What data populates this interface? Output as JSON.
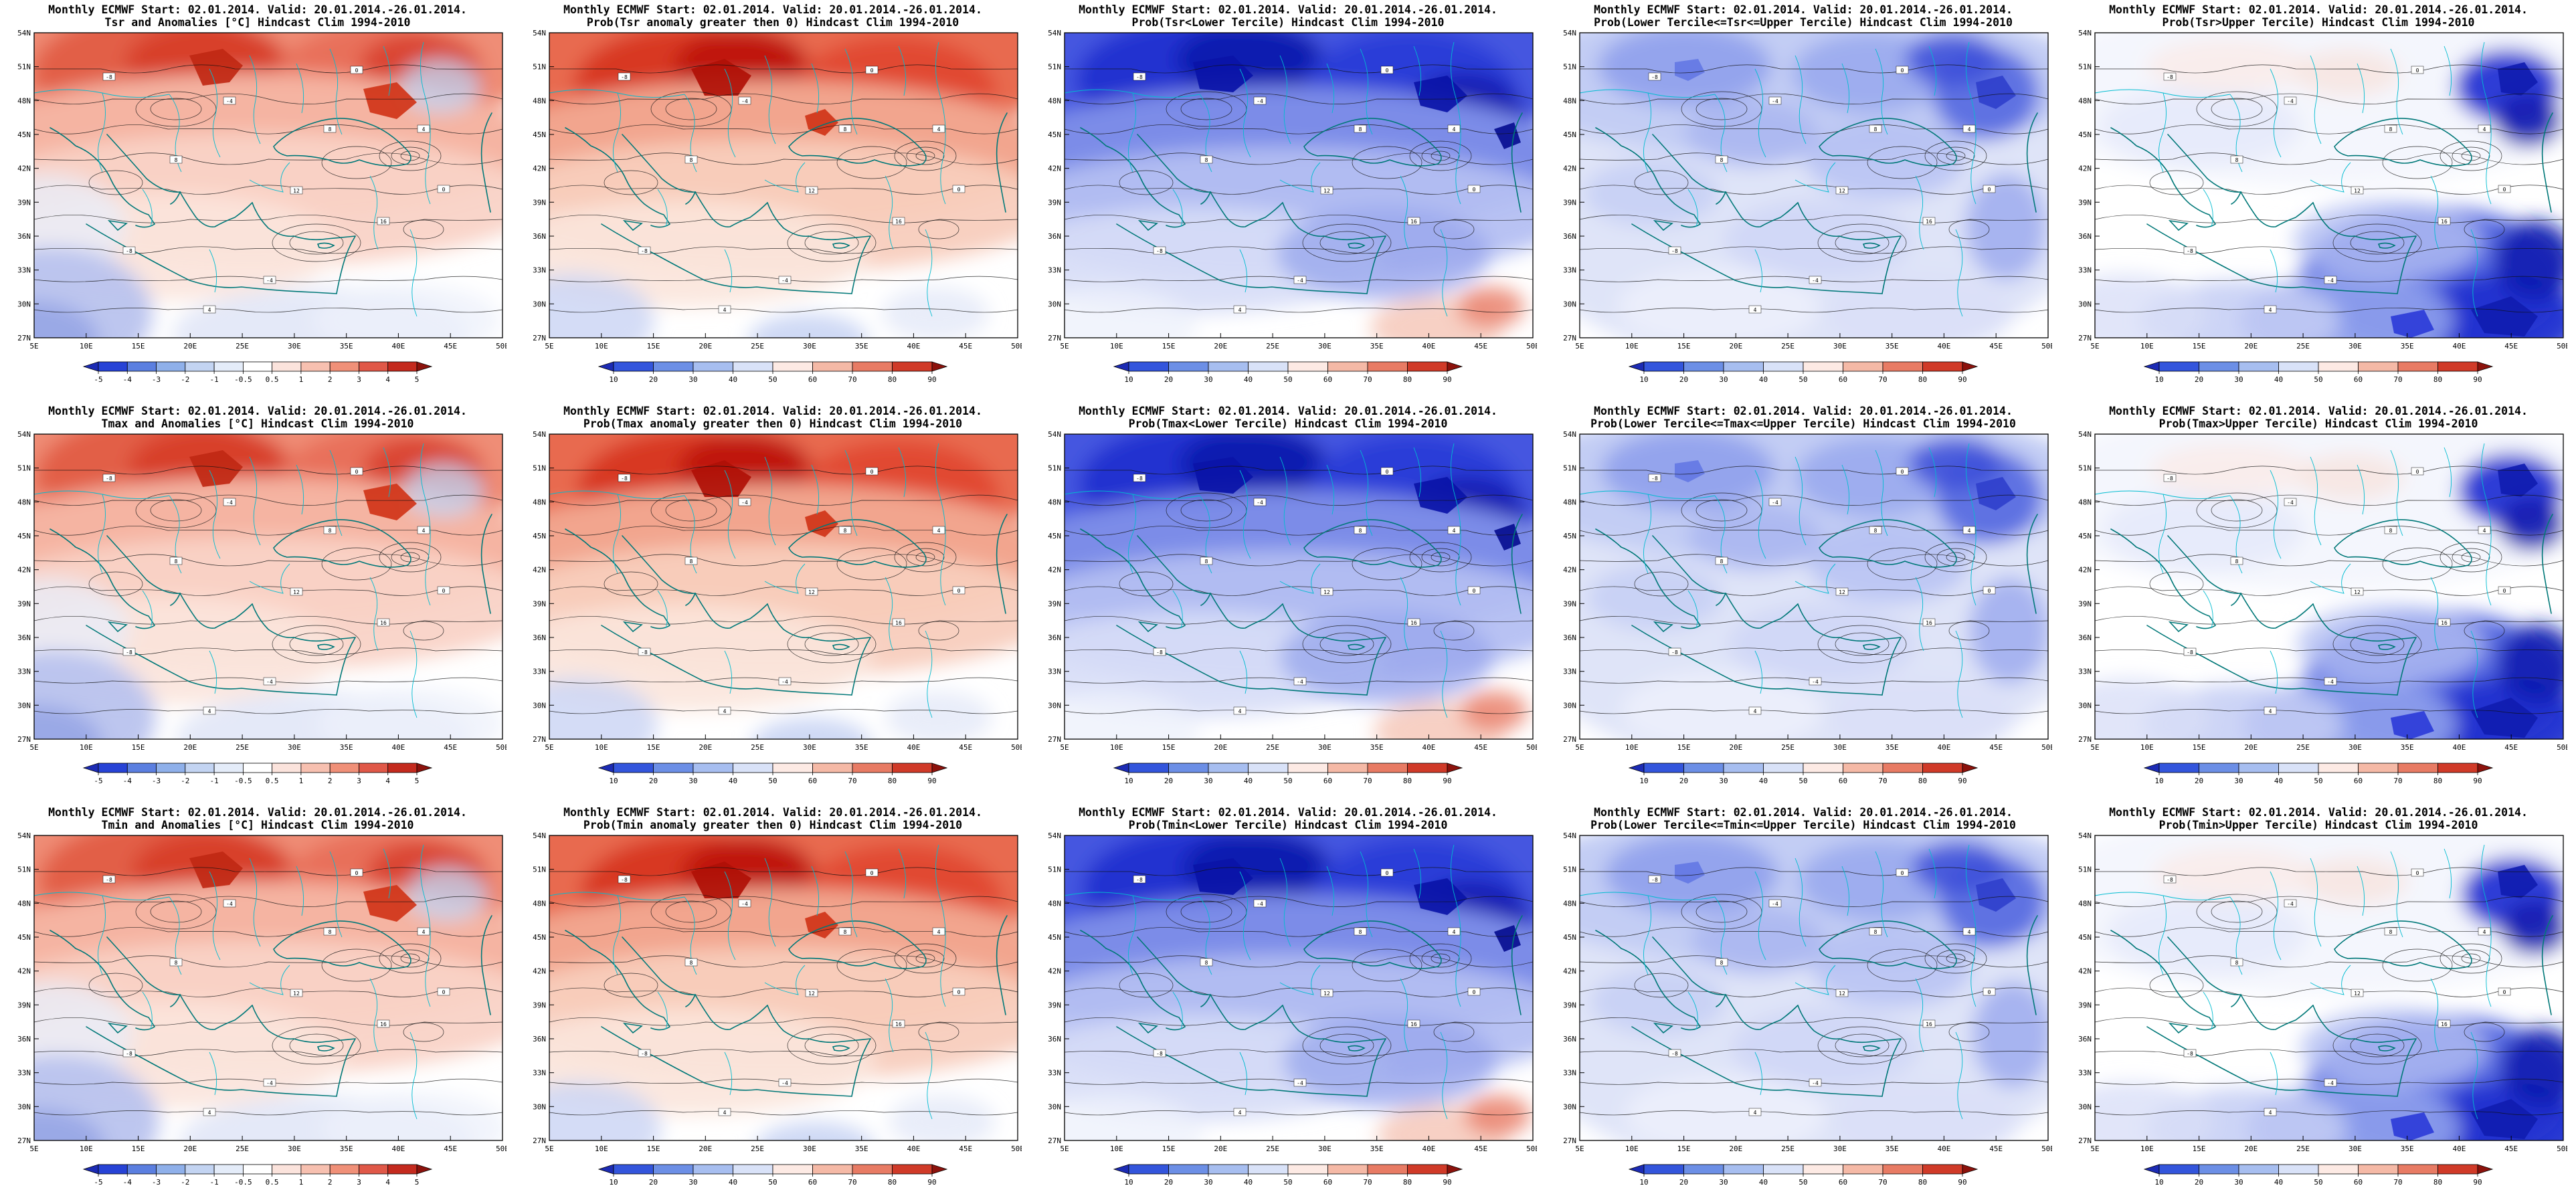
{
  "shared": {
    "title1": "Monthly ECMWF Start: 02.01.2014. Valid: 20.01.2014.-26.01.2014."
  },
  "panels": [
    {
      "id": "tsr-anomaly",
      "title2": "Tsr and Anomalies [°C] Hindcast Clim 1994-2010",
      "style": "anom",
      "colorbar": "anomaly"
    },
    {
      "id": "tsr-prob-pos",
      "title2": "Prob(Tsr anomaly greater then 0) Hindcast Clim 1994-2010",
      "style": "probPos",
      "colorbar": "prob"
    },
    {
      "id": "tsr-prob-low",
      "title2": "Prob(Tsr<Lower Tercile) Hindcast Clim 1994-2010",
      "style": "probLower",
      "colorbar": "prob"
    },
    {
      "id": "tsr-prob-mid",
      "title2": "Prob(Lower Tercile<=Tsr<=Upper Tercile) Hindcast Clim 1994-2010",
      "style": "probMid",
      "colorbar": "prob"
    },
    {
      "id": "tsr-prob-upp",
      "title2": "Prob(Tsr>Upper Tercile) Hindcast Clim 1994-2010",
      "style": "probUpper",
      "colorbar": "prob"
    },
    {
      "id": "tmax-anomaly",
      "title2": "Tmax and Anomalies [°C] Hindcast Clim 1994-2010",
      "style": "anom",
      "colorbar": "anomaly"
    },
    {
      "id": "tmax-prob-pos",
      "title2": "Prob(Tmax anomaly greater then 0) Hindcast Clim 1994-2010",
      "style": "probPos",
      "colorbar": "prob"
    },
    {
      "id": "tmax-prob-low",
      "title2": "Prob(Tmax<Lower Tercile) Hindcast Clim 1994-2010",
      "style": "probLower",
      "colorbar": "prob"
    },
    {
      "id": "tmax-prob-mid",
      "title2": "Prob(Lower Tercile<=Tmax<=Upper Tercile) Hindcast Clim 1994-2010",
      "style": "probMid",
      "colorbar": "prob"
    },
    {
      "id": "tmax-prob-upp",
      "title2": "Prob(Tmax>Upper Tercile) Hindcast Clim 1994-2010",
      "style": "probUpper",
      "colorbar": "prob"
    },
    {
      "id": "tmin-anomaly",
      "title2": "Tmin and Anomalies [°C] Hindcast Clim 1994-2010",
      "style": "anom",
      "colorbar": "anomaly"
    },
    {
      "id": "tmin-prob-pos",
      "title2": "Prob(Tmin anomaly greater then 0) Hindcast Clim 1994-2010",
      "style": "probPos",
      "colorbar": "prob"
    },
    {
      "id": "tmin-prob-low",
      "title2": "Prob(Tmin<Lower Tercile) Hindcast Clim 1994-2010",
      "style": "probLower",
      "colorbar": "prob"
    },
    {
      "id": "tmin-prob-mid",
      "title2": "Prob(Lower Tercile<=Tmin<=Upper Tercile) Hindcast Clim 1994-2010",
      "style": "probMid",
      "colorbar": "prob"
    },
    {
      "id": "tmin-prob-upp",
      "title2": "Prob(Tmin>Upper Tercile) Hindcast Clim 1994-2010",
      "style": "probUpper",
      "colorbar": "prob"
    }
  ],
  "axes": {
    "lat_ticks": [
      "54N",
      "51N",
      "48N",
      "45N",
      "42N",
      "39N",
      "36N",
      "33N",
      "30N",
      "27N"
    ],
    "lon_ticks": [
      "5E",
      "10E",
      "15E",
      "20E",
      "25E",
      "30E",
      "35E",
      "40E",
      "45E",
      "50E"
    ]
  },
  "colorbars": {
    "anomaly": {
      "ticks": [
        "-5",
        "-4",
        "-3",
        "-2",
        "-1",
        "-0.5",
        "0.5",
        "1",
        "2",
        "3",
        "4",
        "5"
      ],
      "colors": [
        "#1c2bb4",
        "#2743d6",
        "#5b7fe0",
        "#8fb0ea",
        "#c3d4f2",
        "#e4ecf9",
        "#ffffff",
        "#fbe3dc",
        "#f7c0b0",
        "#f09078",
        "#e05848",
        "#c42a1e",
        "#8c120c"
      ]
    },
    "prob": {
      "ticks": [
        "10",
        "20",
        "30",
        "40",
        "50",
        "60",
        "70",
        "80",
        "90"
      ],
      "colors": [
        "#1c2bb4",
        "#3355dc",
        "#6c8fe6",
        "#a7bef0",
        "#d9e2f8",
        "#fdeae4",
        "#f5b9a6",
        "#e87b64",
        "#d03a28",
        "#8c120c"
      ]
    }
  },
  "map": {
    "lat_range": [
      "27N",
      "54N"
    ],
    "lon_range": [
      "5E",
      "50E"
    ],
    "contour_labels": [
      "-8",
      "-4",
      "0",
      "4",
      "8",
      "12",
      "16"
    ],
    "coast_color": "#007878",
    "border_color": "#00bcd0"
  }
}
